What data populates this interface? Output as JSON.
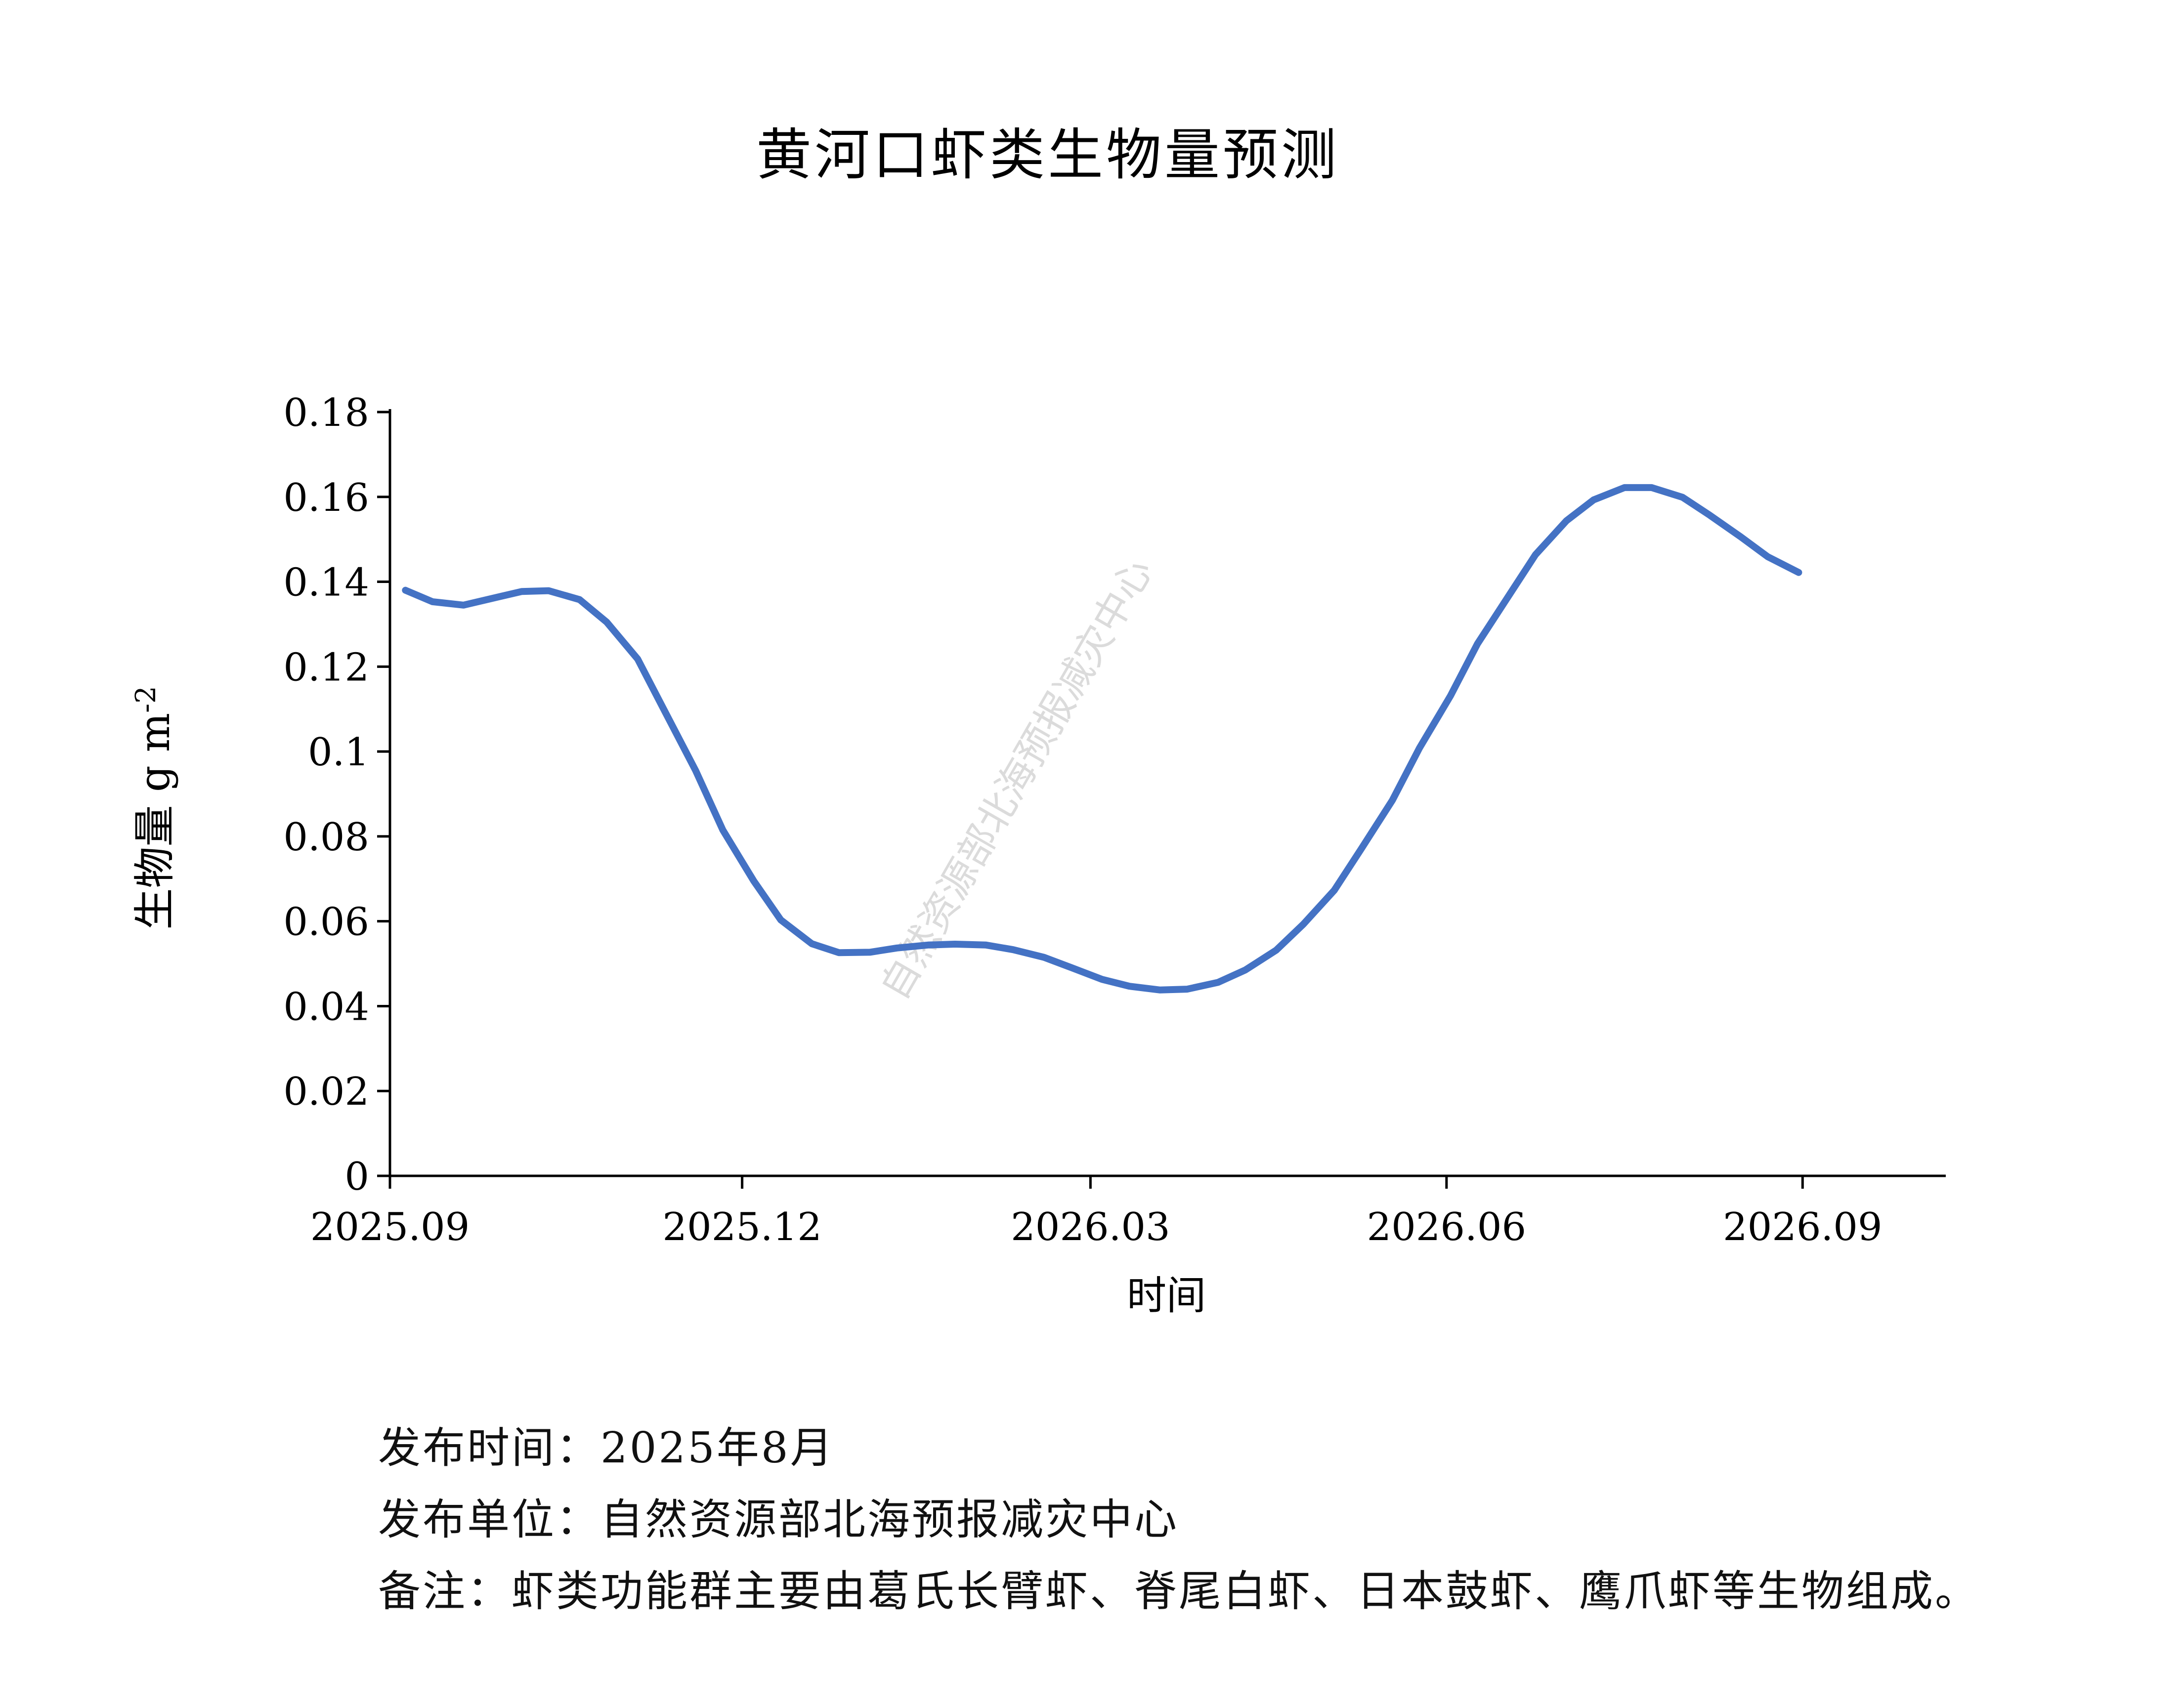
{
  "chart_data": {
    "type": "line",
    "title": "黄河口虾类生物量预测",
    "xlabel": "时间",
    "ylabel": "生物量 g m",
    "ylabel_sup": "-2",
    "ylim": [
      0,
      0.18
    ],
    "yticks": [
      0,
      0.02,
      0.04,
      0.06,
      0.08,
      0.1,
      0.12,
      0.14,
      0.16,
      0.18
    ],
    "ytick_labels": [
      "0",
      "0.02",
      "0.04",
      "0.06",
      "0.08",
      "0.1",
      "0.12",
      "0.14",
      "0.16",
      "0.18"
    ],
    "xlim": [
      "2025-09-01",
      "2026-10-08"
    ],
    "xticks": [
      "2025-09-01",
      "2025-12-01",
      "2026-03-01",
      "2026-06-01",
      "2026-09-01"
    ],
    "xtick_labels": [
      "2025.09",
      "2025.12",
      "2026.03",
      "2026.06",
      "2026.09"
    ],
    "grid": false,
    "legend": "none",
    "series": [
      {
        "color": "#4472C4",
        "x": [
          "2025-09-05",
          "2025-09-12",
          "2025-09-20",
          "2025-09-27",
          "2025-10-05",
          "2025-10-12",
          "2025-10-20",
          "2025-10-27",
          "2025-11-04",
          "2025-11-11",
          "2025-11-19",
          "2025-11-26",
          "2025-12-04",
          "2025-12-11",
          "2025-12-19",
          "2025-12-26",
          "2026-01-03",
          "2026-01-10",
          "2026-01-18",
          "2026-01-25",
          "2026-02-02",
          "2026-02-09",
          "2026-02-17",
          "2026-02-24",
          "2026-03-04",
          "2026-03-11",
          "2026-03-19",
          "2026-03-26",
          "2026-04-03",
          "2026-04-10",
          "2026-04-18",
          "2026-04-25",
          "2026-05-03",
          "2026-05-10",
          "2026-05-18",
          "2026-05-25",
          "2026-06-02",
          "2026-06-09",
          "2026-06-17",
          "2026-06-24",
          "2026-07-02",
          "2026-07-09",
          "2026-07-17",
          "2026-07-24",
          "2026-08-01",
          "2026-08-08",
          "2026-08-16",
          "2026-08-23",
          "2026-08-31"
        ],
        "y": [
          0.138,
          0.1353,
          0.1345,
          0.136,
          0.1377,
          0.1379,
          0.1358,
          0.1305,
          0.1218,
          0.1095,
          0.0955,
          0.0815,
          0.0695,
          0.0603,
          0.0547,
          0.0526,
          0.0527,
          0.0537,
          0.0544,
          0.0546,
          0.0544,
          0.0533,
          0.0515,
          0.0491,
          0.0463,
          0.0447,
          0.0438,
          0.044,
          0.0456,
          0.0485,
          0.0532,
          0.0593,
          0.0673,
          0.0771,
          0.0885,
          0.1008,
          0.1131,
          0.1254,
          0.1366,
          0.1464,
          0.1544,
          0.1593,
          0.1622,
          0.1622,
          0.1599,
          0.1557,
          0.1506,
          0.1459,
          0.1422
        ]
      }
    ]
  },
  "watermark": "自然资源部北海预报减灾中心",
  "footer": {
    "release_time": "发布时间：2025年8月",
    "release_unit": "发布单位：自然资源部北海预报减灾中心",
    "note": "备注：虾类功能群主要由葛氏长臂虾、脊尾白虾、日本鼓虾、鹰爪虾等生物组成。"
  }
}
